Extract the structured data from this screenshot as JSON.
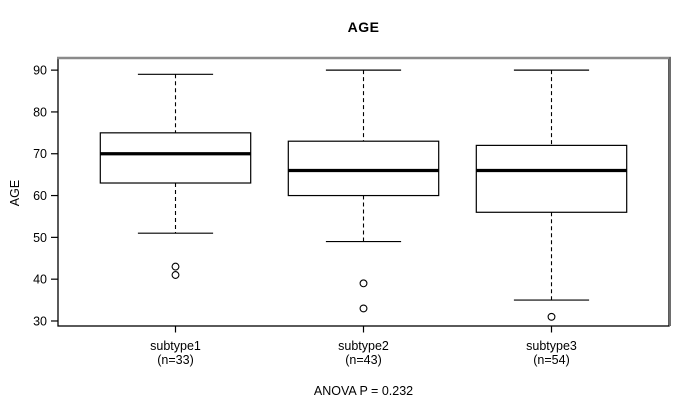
{
  "chart_data": {
    "type": "boxplot",
    "title": "AGE",
    "ylabel": "AGE",
    "xlabel": "",
    "annotation": "ANOVA P = 0.232",
    "yticks": [
      30,
      40,
      50,
      60,
      70,
      80,
      90
    ],
    "ylim": [
      28.8,
      92.9
    ],
    "grid": false,
    "legend": false,
    "categories": [
      "subtype1",
      "subtype2",
      "subtype3"
    ],
    "category_sublabels": [
      "(n=33)",
      "(n=43)",
      "(n=54)"
    ],
    "series": [
      {
        "name": "subtype1",
        "n": 33,
        "whisker_low": 51,
        "q1": 63,
        "median": 70,
        "q3": 75,
        "whisker_high": 89,
        "outliers": [
          43,
          41
        ]
      },
      {
        "name": "subtype2",
        "n": 43,
        "whisker_low": 49,
        "q1": 60,
        "median": 66,
        "q3": 73,
        "whisker_high": 90,
        "outliers": [
          39,
          33
        ]
      },
      {
        "name": "subtype3",
        "n": 54,
        "whisker_low": 35,
        "q1": 56,
        "median": 66,
        "q3": 72,
        "whisker_high": 90,
        "outliers": [
          31
        ]
      }
    ],
    "colors": {
      "line": "#000000",
      "box_fill": "#ffffff",
      "frame_shadow_top": "#8a8a8a",
      "frame_shadow_right": "#6e6e6e",
      "text": "#000000",
      "background": "#ffffff"
    }
  }
}
